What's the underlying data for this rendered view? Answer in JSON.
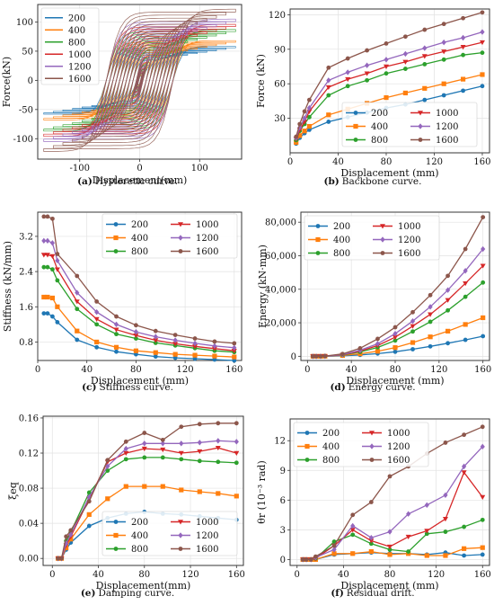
{
  "colors": {
    "200": "#1f77b4",
    "400": "#ff7f0e",
    "800": "#2ca02c",
    "1000": "#d62728",
    "1200": "#9467bd",
    "1600": "#8c564b"
  },
  "legend_names": [
    "200",
    "400",
    "800",
    "1000",
    "1200",
    "1600"
  ],
  "panels": {
    "a": {
      "caption_letter": "(a)",
      "caption_text": "Hysteretic curve."
    },
    "b": {
      "caption_letter": "(b)",
      "caption_text": "Backbone curve."
    },
    "c": {
      "caption_letter": "(c)",
      "caption_text": "Stiffness curve."
    },
    "d": {
      "caption_letter": "(d)",
      "caption_text": "Energy curve."
    },
    "e": {
      "caption_letter": "(e)",
      "caption_text": "Damping curve."
    },
    "f": {
      "caption_letter": "(f)",
      "caption_text": "Residual drift."
    }
  },
  "chart_data": [
    {
      "id": "a",
      "type": "line",
      "xlabel": "Displacement(mm)",
      "ylabel": "Force(kN)",
      "xlim": [
        -170,
        170
      ],
      "ylim": [
        -135,
        130
      ],
      "xticks": [
        -100,
        0,
        100
      ],
      "yticks": [
        -100,
        -50,
        0,
        50,
        100
      ],
      "legend": "top-left",
      "grid": true,
      "series": [
        {
          "name": "200",
          "peak_force": 58
        },
        {
          "name": "400",
          "peak_force": 68
        },
        {
          "name": "800",
          "peak_force": 87
        },
        {
          "name": "1000",
          "peak_force": 96
        },
        {
          "name": "1200",
          "peak_force": 105
        },
        {
          "name": "1600",
          "peak_force": 122
        }
      ],
      "displacement_amplitudes": [
        5,
        8,
        12,
        16,
        32,
        48,
        64,
        80,
        96,
        112,
        128,
        144,
        160
      ]
    },
    {
      "id": "b",
      "type": "line",
      "xlabel": "Displacement (mm)",
      "ylabel": "Force (kN)",
      "xlim": [
        0,
        166
      ],
      "ylim": [
        0,
        125
      ],
      "xticks": [
        0,
        40,
        80,
        120,
        160
      ],
      "yticks": [
        30,
        60,
        90,
        120
      ],
      "legend": "lower-right",
      "grid": true,
      "x": [
        5,
        8,
        12,
        16,
        32,
        48,
        64,
        80,
        96,
        112,
        128,
        144,
        160
      ],
      "series": [
        {
          "name": "200",
          "values": [
            8,
            13,
            17,
            20,
            27,
            31,
            35,
            39,
            42,
            46,
            50,
            54,
            58
          ]
        },
        {
          "name": "400",
          "values": [
            9,
            15,
            19,
            23,
            33,
            38,
            43,
            48,
            52,
            56,
            60,
            64,
            68
          ]
        },
        {
          "name": "800",
          "values": [
            11,
            19,
            25,
            31,
            50,
            58,
            63,
            69,
            73,
            77,
            81,
            85,
            87
          ]
        },
        {
          "name": "1000",
          "values": [
            12,
            20,
            27,
            36,
            57,
            64,
            69,
            75,
            79,
            84,
            88,
            92,
            96
          ]
        },
        {
          "name": "1200",
          "values": [
            13,
            22,
            30,
            39,
            63,
            70,
            76,
            81,
            86,
            91,
            96,
            100,
            105
          ]
        },
        {
          "name": "1600",
          "values": [
            14,
            25,
            36,
            46,
            74,
            82,
            89,
            95,
            101,
            107,
            112,
            117,
            122
          ]
        }
      ]
    },
    {
      "id": "c",
      "type": "line",
      "xlabel": "Displacement (mm)",
      "ylabel": "Stiffness (kN/mm)",
      "xlim": [
        0,
        166
      ],
      "ylim": [
        0.38,
        3.75
      ],
      "xticks": [
        0,
        40,
        80,
        120,
        160
      ],
      "yticks": [
        0.8,
        1.6,
        2.4,
        3.2
      ],
      "legend": "upper-right",
      "grid": true,
      "x": [
        5,
        8,
        12,
        16,
        32,
        48,
        64,
        80,
        96,
        112,
        128,
        144,
        160
      ],
      "series": [
        {
          "name": "200",
          "values": [
            1.45,
            1.45,
            1.38,
            1.25,
            0.85,
            0.68,
            0.58,
            0.52,
            0.47,
            0.44,
            0.42,
            0.4,
            0.38
          ]
        },
        {
          "name": "400",
          "values": [
            1.82,
            1.82,
            1.8,
            1.6,
            1.05,
            0.8,
            0.68,
            0.6,
            0.56,
            0.52,
            0.5,
            0.48,
            0.46
          ]
        },
        {
          "name": "800",
          "values": [
            2.5,
            2.5,
            2.45,
            2.2,
            1.55,
            1.2,
            0.98,
            0.88,
            0.78,
            0.72,
            0.66,
            0.6,
            0.57
          ]
        },
        {
          "name": "1000",
          "values": [
            2.78,
            2.78,
            2.75,
            2.45,
            1.72,
            1.32,
            1.08,
            0.95,
            0.84,
            0.76,
            0.7,
            0.65,
            0.6
          ]
        },
        {
          "name": "1200",
          "values": [
            3.1,
            3.1,
            3.05,
            2.65,
            1.92,
            1.48,
            1.2,
            1.03,
            0.92,
            0.84,
            0.77,
            0.71,
            0.67
          ]
        },
        {
          "name": "1600",
          "values": [
            3.65,
            3.65,
            3.6,
            2.8,
            2.3,
            1.72,
            1.38,
            1.18,
            1.05,
            0.96,
            0.88,
            0.81,
            0.77
          ]
        }
      ]
    },
    {
      "id": "d",
      "type": "line",
      "xlabel": "Displacement (mm)",
      "ylabel": "Energy (kN·mm)",
      "xlim": [
        -6,
        166
      ],
      "ylim": [
        -2500,
        86000
      ],
      "xticks": [
        0,
        40,
        80,
        120,
        160
      ],
      "yticks": [
        0,
        20000,
        40000,
        60000,
        80000
      ],
      "ytick_labels": [
        "0",
        "20,000",
        "40,000",
        "60,000",
        "80,000"
      ],
      "legend": "upper-left",
      "grid": true,
      "x": [
        5,
        8,
        12,
        16,
        32,
        48,
        64,
        80,
        96,
        112,
        128,
        144,
        160
      ],
      "series": [
        {
          "name": "200",
          "values": [
            0,
            0,
            0,
            0,
            300,
            800,
            1600,
            2700,
            4200,
            5900,
            7800,
            9800,
            12000
          ]
        },
        {
          "name": "400",
          "values": [
            0,
            0,
            0,
            50,
            500,
            1500,
            3000,
            5200,
            8200,
            11600,
            15000,
            19000,
            23000
          ]
        },
        {
          "name": "800",
          "values": [
            0,
            0,
            0,
            80,
            800,
            2600,
            5300,
            9400,
            14800,
            20600,
            27400,
            35500,
            44000
          ]
        },
        {
          "name": "1000",
          "values": [
            0,
            0,
            0,
            90,
            900,
            3100,
            6400,
            11400,
            18000,
            25000,
            33500,
            43500,
            54000
          ]
        },
        {
          "name": "1200",
          "values": [
            0,
            0,
            0,
            100,
            1000,
            3600,
            7500,
            13500,
            21000,
            29500,
            39500,
            51000,
            64000
          ]
        },
        {
          "name": "1600",
          "values": [
            0,
            0,
            0,
            120,
            1400,
            4800,
            10400,
            17300,
            26300,
            36500,
            48000,
            64000,
            83000
          ]
        }
      ]
    },
    {
      "id": "e",
      "type": "line",
      "xlabel": "Displacement(mm)",
      "ylabel": "ξeq",
      "xlim": [
        -8,
        166
      ],
      "ylim": [
        -0.008,
        0.162
      ],
      "xticks": [
        0,
        40,
        80,
        120,
        160
      ],
      "yticks": [
        0.0,
        0.04,
        0.08,
        0.12,
        0.16
      ],
      "ytick_labels": [
        "0.00",
        "0.04",
        "0.08",
        "0.12",
        "0.16"
      ],
      "legend": "lower-right",
      "grid": true,
      "x": [
        5,
        8,
        12,
        16,
        32,
        48,
        64,
        80,
        96,
        112,
        128,
        144,
        160
      ],
      "series": [
        {
          "name": "200",
          "values": [
            0,
            0,
            0.01,
            0.018,
            0.037,
            0.046,
            0.051,
            0.053,
            0.051,
            0.05,
            0.048,
            0.046,
            0.044
          ]
        },
        {
          "name": "400",
          "values": [
            0,
            0,
            0.012,
            0.022,
            0.05,
            0.068,
            0.082,
            0.082,
            0.082,
            0.078,
            0.076,
            0.074,
            0.071
          ]
        },
        {
          "name": "800",
          "values": [
            0,
            0,
            0.02,
            0.03,
            0.075,
            0.1,
            0.113,
            0.115,
            0.115,
            0.113,
            0.111,
            0.11,
            0.109
          ]
        },
        {
          "name": "1000",
          "values": [
            0,
            0,
            0.015,
            0.025,
            0.068,
            0.11,
            0.12,
            0.125,
            0.124,
            0.12,
            0.122,
            0.126,
            0.12
          ]
        },
        {
          "name": "1200",
          "values": [
            0,
            0,
            0.017,
            0.027,
            0.07,
            0.105,
            0.125,
            0.131,
            0.131,
            0.131,
            0.132,
            0.134,
            0.133
          ]
        },
        {
          "name": "1600",
          "values": [
            0,
            0,
            0.025,
            0.032,
            0.065,
            0.112,
            0.133,
            0.143,
            0.135,
            0.15,
            0.153,
            0.154,
            0.154
          ]
        }
      ]
    },
    {
      "id": "f",
      "type": "line",
      "xlabel": "Displacement (mm)",
      "ylabel": "θr (10⁻³ rad)",
      "xlim": [
        -6,
        166
      ],
      "ylim": [
        -0.6,
        14.2
      ],
      "xticks": [
        0,
        40,
        80,
        120,
        160
      ],
      "yticks": [
        0,
        3,
        6,
        9,
        12
      ],
      "legend": "upper-left",
      "grid": true,
      "x": [
        5,
        8,
        12,
        16,
        32,
        48,
        64,
        80,
        96,
        112,
        128,
        144,
        160
      ],
      "series": [
        {
          "name": "200",
          "values": [
            0,
            0,
            0,
            0,
            0.5,
            0.6,
            0.7,
            0.6,
            0.6,
            0.5,
            0.7,
            0.4,
            0.5
          ]
        },
        {
          "name": "400",
          "values": [
            0,
            0,
            0,
            0,
            0.6,
            0.6,
            0.8,
            0.5,
            0.6,
            0.4,
            0.4,
            1.1,
            1.2
          ]
        },
        {
          "name": "800",
          "values": [
            0,
            0,
            0,
            0.1,
            1.8,
            2.5,
            1.6,
            1.0,
            0.8,
            2.6,
            2.8,
            3.3,
            4.0
          ]
        },
        {
          "name": "1000",
          "values": [
            0,
            0,
            0,
            0.1,
            1.4,
            3.0,
            1.9,
            1.3,
            2.3,
            2.9,
            4.1,
            8.8,
            6.3
          ]
        },
        {
          "name": "1200",
          "values": [
            0,
            0,
            0,
            0.2,
            1.0,
            3.4,
            2.2,
            2.8,
            4.6,
            5.5,
            6.5,
            9.4,
            11.4
          ]
        },
        {
          "name": "1600",
          "values": [
            0,
            0,
            0,
            0.3,
            1.4,
            4.5,
            5.8,
            8.4,
            9.4,
            10.7,
            11.8,
            12.6,
            13.4
          ]
        }
      ]
    }
  ]
}
